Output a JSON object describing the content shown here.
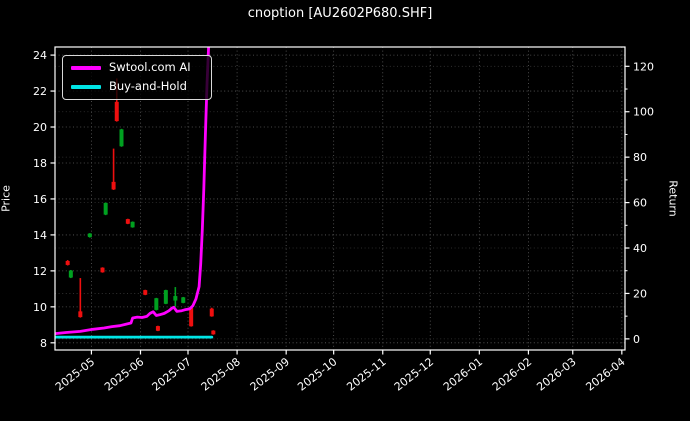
{
  "chart_data": {
    "type": "candlestick_with_lines",
    "title": "cnoption [AU2602P680.SHF]",
    "background": "#000000",
    "foreground": "#ffffff",
    "grid_color": "#5d5d5d",
    "frame_color": "#ffffff",
    "price_axis": {
      "label": "Price",
      "side": "left",
      "ticks": [
        8,
        10,
        12,
        14,
        16,
        18,
        20,
        22,
        24
      ],
      "range": [
        7.6,
        24.45
      ]
    },
    "return_axis": {
      "label": "Return",
      "side": "right",
      "ticks": [
        0,
        20,
        40,
        60,
        80,
        100,
        120
      ],
      "minor_ticks": [
        10,
        30,
        50,
        70,
        90,
        110
      ],
      "range": [
        -4.9,
        128.5
      ]
    },
    "x_axis": {
      "range": [
        "2025-04-08",
        "2026-04-03"
      ],
      "ticks": [
        {
          "label": "2025-05",
          "date": "2025-05-01"
        },
        {
          "label": "2025-06",
          "date": "2025-06-01"
        },
        {
          "label": "2025-07",
          "date": "2025-07-01"
        },
        {
          "label": "2025-08",
          "date": "2025-08-01"
        },
        {
          "label": "2025-09",
          "date": "2025-09-01"
        },
        {
          "label": "2025-10",
          "date": "2025-10-01"
        },
        {
          "label": "2025-11",
          "date": "2025-11-01"
        },
        {
          "label": "2025-12",
          "date": "2025-12-01"
        },
        {
          "label": "2026-01",
          "date": "2026-01-01"
        },
        {
          "label": "2026-02",
          "date": "2026-02-01"
        },
        {
          "label": "2026-03",
          "date": "2026-03-01"
        },
        {
          "label": "2026-04",
          "date": "2026-04-01"
        }
      ]
    },
    "legend": {
      "position": "upper-left"
    },
    "series": [
      {
        "name": "Swtool.com AI",
        "color": "#ff00ff",
        "axis": "return",
        "points": [
          [
            "2025-04-08",
            2.3
          ],
          [
            "2025-04-15",
            2.8
          ],
          [
            "2025-04-24",
            3.3
          ],
          [
            "2025-05-02",
            4.2
          ],
          [
            "2025-05-09",
            4.8
          ],
          [
            "2025-05-14",
            5.4
          ],
          [
            "2025-05-19",
            5.8
          ],
          [
            "2025-05-23",
            6.5
          ],
          [
            "2025-05-26",
            7.0
          ],
          [
            "2025-05-27",
            9.2
          ],
          [
            "2025-05-30",
            9.6
          ],
          [
            "2025-06-02",
            9.4
          ],
          [
            "2025-06-05",
            9.9
          ],
          [
            "2025-06-07",
            11.2
          ],
          [
            "2025-06-09",
            11.9
          ],
          [
            "2025-06-11",
            10.3
          ],
          [
            "2025-06-13",
            10.6
          ],
          [
            "2025-06-16",
            11.2
          ],
          [
            "2025-06-19",
            12.4
          ],
          [
            "2025-06-21",
            13.6
          ],
          [
            "2025-06-22",
            13.9
          ],
          [
            "2025-06-24",
            12.1
          ],
          [
            "2025-06-27",
            12.4
          ],
          [
            "2025-06-29",
            12.8
          ],
          [
            "2025-07-02",
            13.2
          ],
          [
            "2025-07-04",
            14.5
          ],
          [
            "2025-07-06",
            17.5
          ],
          [
            "2025-07-08",
            23
          ],
          [
            "2025-07-09",
            33
          ],
          [
            "2025-07-10",
            48
          ],
          [
            "2025-07-11",
            66
          ],
          [
            "2025-07-12",
            90
          ],
          [
            "2025-07-13",
            112
          ],
          [
            "2025-07-14",
            128.5
          ]
        ]
      },
      {
        "name": "Buy-and-Hold",
        "color": "#00e5e5",
        "axis": "return",
        "points": [
          [
            "2025-04-08",
            0.8
          ],
          [
            "2025-07-16",
            0.8
          ]
        ]
      }
    ],
    "candles": {
      "up_color": "#00a020",
      "down_color": "#ef0f0f",
      "items": [
        {
          "date": "2025-04-16",
          "open": 12.55,
          "high": 12.6,
          "low": 12.3,
          "close": 12.33,
          "dir": "down"
        },
        {
          "date": "2025-04-18",
          "open": 11.63,
          "high": 12.05,
          "low": 11.6,
          "close": 12.02,
          "dir": "up"
        },
        {
          "date": "2025-04-24",
          "open": 9.75,
          "high": 11.6,
          "low": 9.4,
          "close": 9.43,
          "dir": "down"
        },
        {
          "date": "2025-04-30",
          "open": 13.88,
          "high": 14.1,
          "low": 13.85,
          "close": 14.08,
          "dir": "up"
        },
        {
          "date": "2025-05-08",
          "open": 12.18,
          "high": 12.2,
          "low": 11.9,
          "close": 11.92,
          "dir": "down"
        },
        {
          "date": "2025-05-10",
          "open": 15.13,
          "high": 15.8,
          "low": 15.1,
          "close": 15.78,
          "dir": "up"
        },
        {
          "date": "2025-05-15",
          "open": 16.95,
          "high": 18.8,
          "low": 16.5,
          "close": 16.53,
          "dir": "down"
        },
        {
          "date": "2025-05-17",
          "open": 21.4,
          "high": 22.7,
          "low": 20.3,
          "close": 20.33,
          "dir": "down"
        },
        {
          "date": "2025-05-20",
          "open": 18.93,
          "high": 19.9,
          "low": 18.9,
          "close": 19.87,
          "dir": "up"
        },
        {
          "date": "2025-05-24",
          "open": 14.88,
          "high": 14.9,
          "low": 14.6,
          "close": 14.62,
          "dir": "down"
        },
        {
          "date": "2025-05-27",
          "open": 14.42,
          "high": 14.75,
          "low": 14.4,
          "close": 14.73,
          "dir": "up"
        },
        {
          "date": "2025-06-04",
          "open": 10.93,
          "high": 10.95,
          "low": 10.65,
          "close": 10.67,
          "dir": "down"
        },
        {
          "date": "2025-06-11",
          "open": 9.83,
          "high": 10.5,
          "low": 9.8,
          "close": 10.48,
          "dir": "up"
        },
        {
          "date": "2025-06-12",
          "open": 8.93,
          "high": 8.95,
          "low": 8.65,
          "close": 8.67,
          "dir": "down"
        },
        {
          "date": "2025-06-17",
          "open": 10.17,
          "high": 10.95,
          "low": 10.15,
          "close": 10.93,
          "dir": "up"
        },
        {
          "date": "2025-06-23",
          "open": 10.35,
          "high": 11.1,
          "low": 10.0,
          "close": 10.6,
          "dir": "up"
        },
        {
          "date": "2025-06-28",
          "open": 10.22,
          "high": 10.55,
          "low": 10.2,
          "close": 10.53,
          "dir": "up"
        },
        {
          "date": "2025-07-03",
          "open": 9.95,
          "high": 10.0,
          "low": 8.9,
          "close": 8.92,
          "dir": "down"
        },
        {
          "date": "2025-07-16",
          "open": 9.9,
          "high": 9.95,
          "low": 9.45,
          "close": 9.47,
          "dir": "down"
        },
        {
          "date": "2025-07-17",
          "open": 8.68,
          "high": 8.7,
          "low": 8.45,
          "close": 8.47,
          "dir": "down"
        }
      ]
    }
  }
}
